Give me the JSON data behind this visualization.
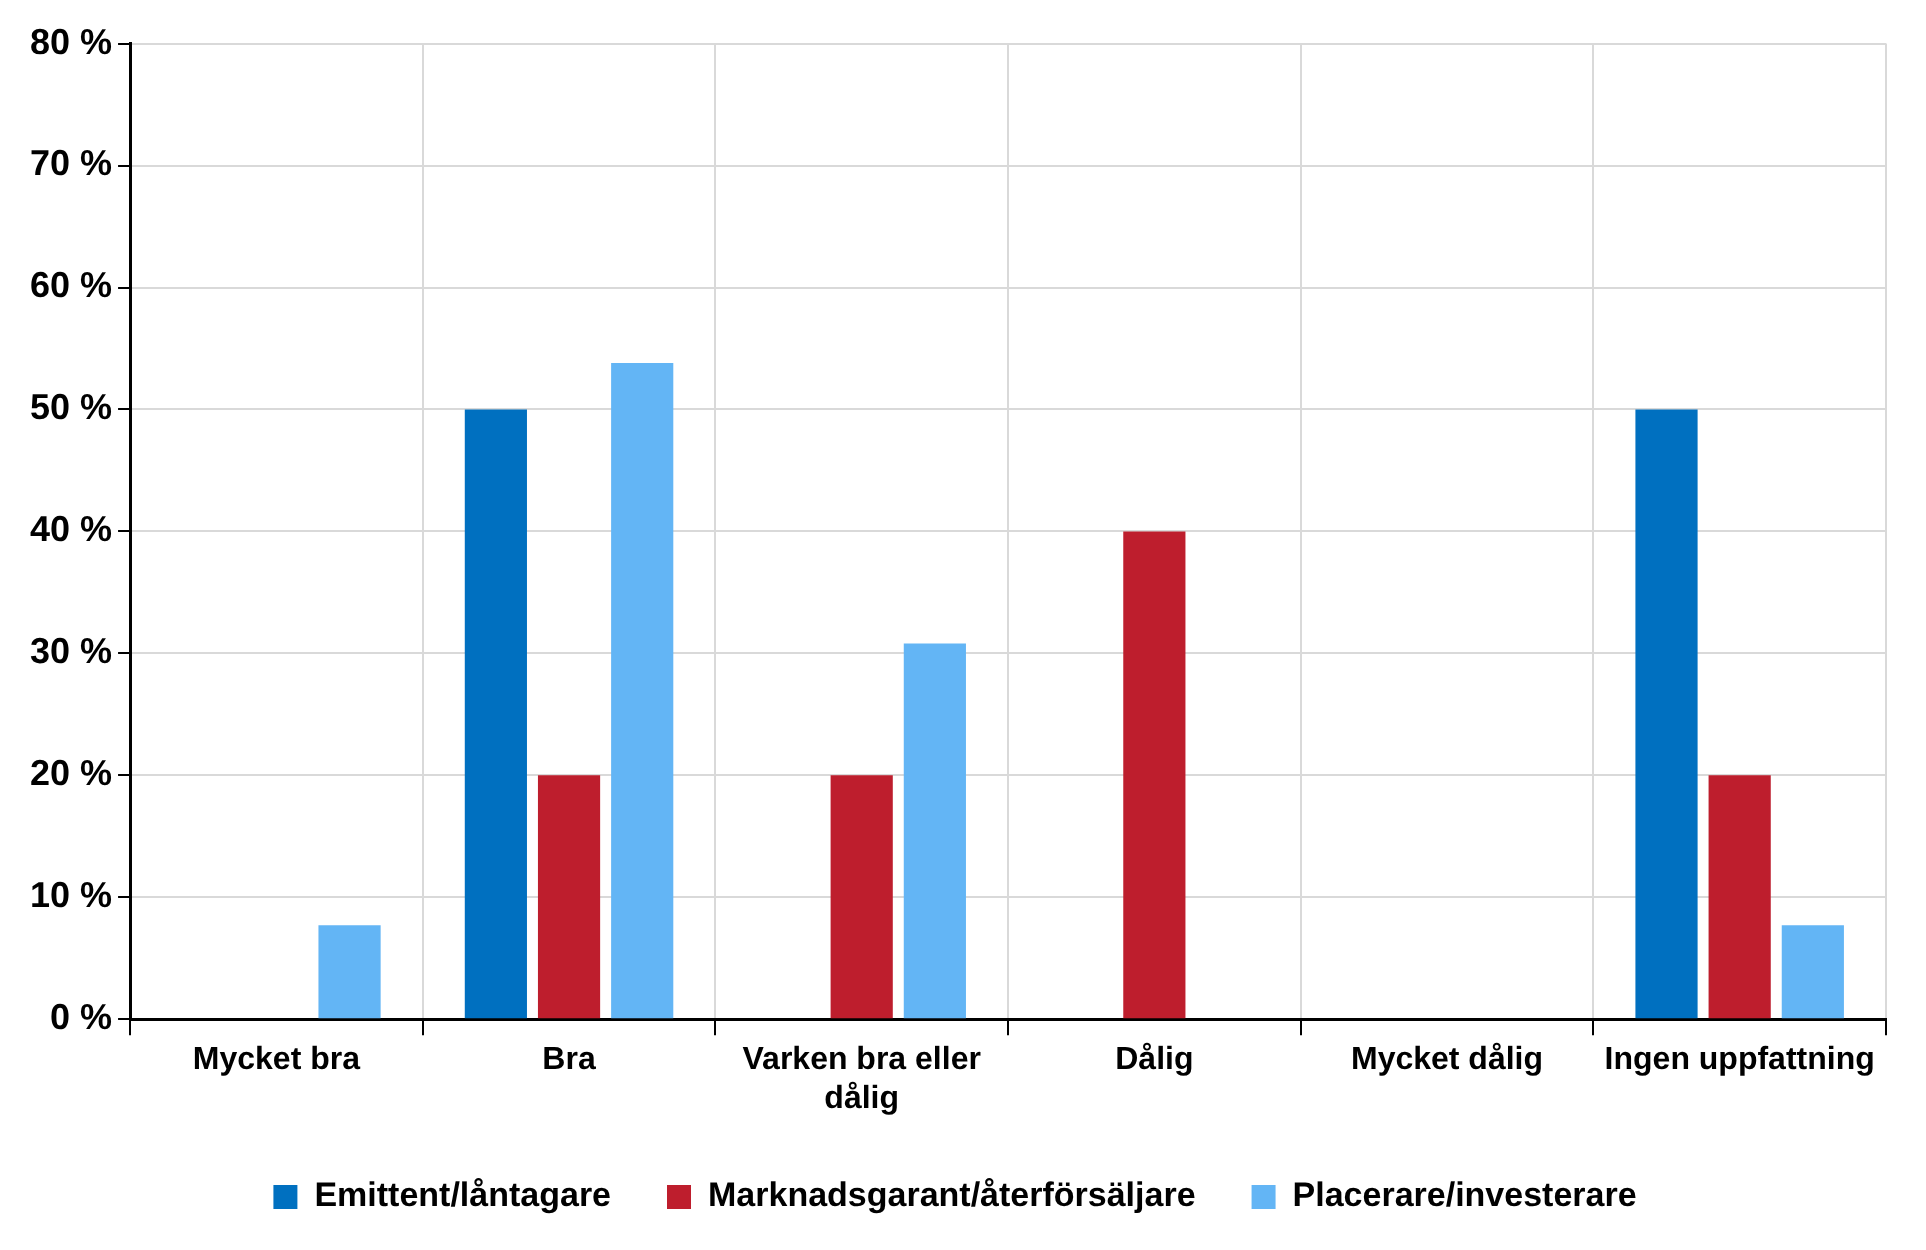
{
  "chart_data": {
    "type": "bar",
    "categories": [
      "Mycket bra",
      "Bra",
      "Varken bra eller dålig",
      "Dålig",
      "Mycket dålig",
      "Ingen uppfattning"
    ],
    "series": [
      {
        "name": "Emittent/låntagare",
        "color": "#0070c0",
        "values": [
          0,
          50,
          0,
          0,
          0,
          50
        ]
      },
      {
        "name": "Marknadsgarant/återförsäljare",
        "color": "#be1e2d",
        "values": [
          0,
          20,
          20,
          40,
          0,
          20
        ]
      },
      {
        "name": "Placerare/investerare",
        "color": "#63b5f5",
        "values": [
          7.7,
          53.8,
          30.8,
          0,
          0,
          7.7
        ]
      }
    ],
    "ylim": [
      0,
      80
    ],
    "yticks": [
      {
        "value": 0,
        "label": "0 %"
      },
      {
        "value": 10,
        "label": "10 %"
      },
      {
        "value": 20,
        "label": "20 %"
      },
      {
        "value": 30,
        "label": "30 %"
      },
      {
        "value": 40,
        "label": "40 %"
      },
      {
        "value": 50,
        "label": "50 %"
      },
      {
        "value": 60,
        "label": "60 %"
      },
      {
        "value": 70,
        "label": "70 %"
      },
      {
        "value": 80,
        "label": "80 %"
      }
    ],
    "grid": true,
    "legend": "bottom"
  }
}
